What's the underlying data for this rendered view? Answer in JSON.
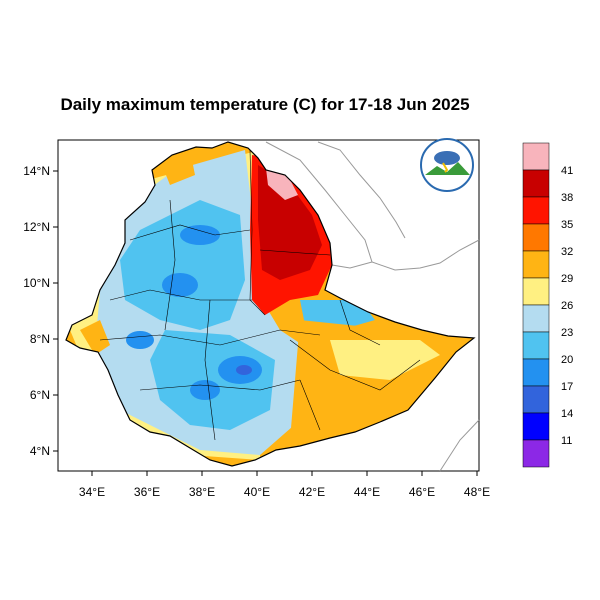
{
  "map": {
    "title": "Daily maximum temperature (C) for 17-18 Jun 2025",
    "x_ticks": [
      "34°E",
      "36°E",
      "38°E",
      "40°E",
      "42°E",
      "44°E",
      "46°E",
      "48°E"
    ],
    "y_ticks": [
      "14°N",
      "12°N",
      "10°N",
      "8°N",
      "6°N",
      "4°N"
    ],
    "logo_icon": "ethiopian-meteorology-institute-logo"
  },
  "colorbar": {
    "labels": [
      "41",
      "38",
      "35",
      "32",
      "29",
      "26",
      "23",
      "20",
      "17",
      "14",
      "11"
    ],
    "colors": [
      "#f8b4bc",
      "#c80000",
      "#ff1400",
      "#ff7800",
      "#ffb414",
      "#fff082",
      "#b4dcf0",
      "#50c3f0",
      "#2391f0",
      "#3264dc",
      "#0000ff",
      "#8c28e6"
    ]
  },
  "palette": {
    "hot_dark": "#c80000",
    "hot": "#ff1400",
    "orange": "#ff7800",
    "warm": "#ffb414",
    "mild": "#fff082",
    "cool": "#b4dcf0",
    "cold": "#50c3f0",
    "colder": "#2391f0",
    "coldest": "#3264dc"
  }
}
